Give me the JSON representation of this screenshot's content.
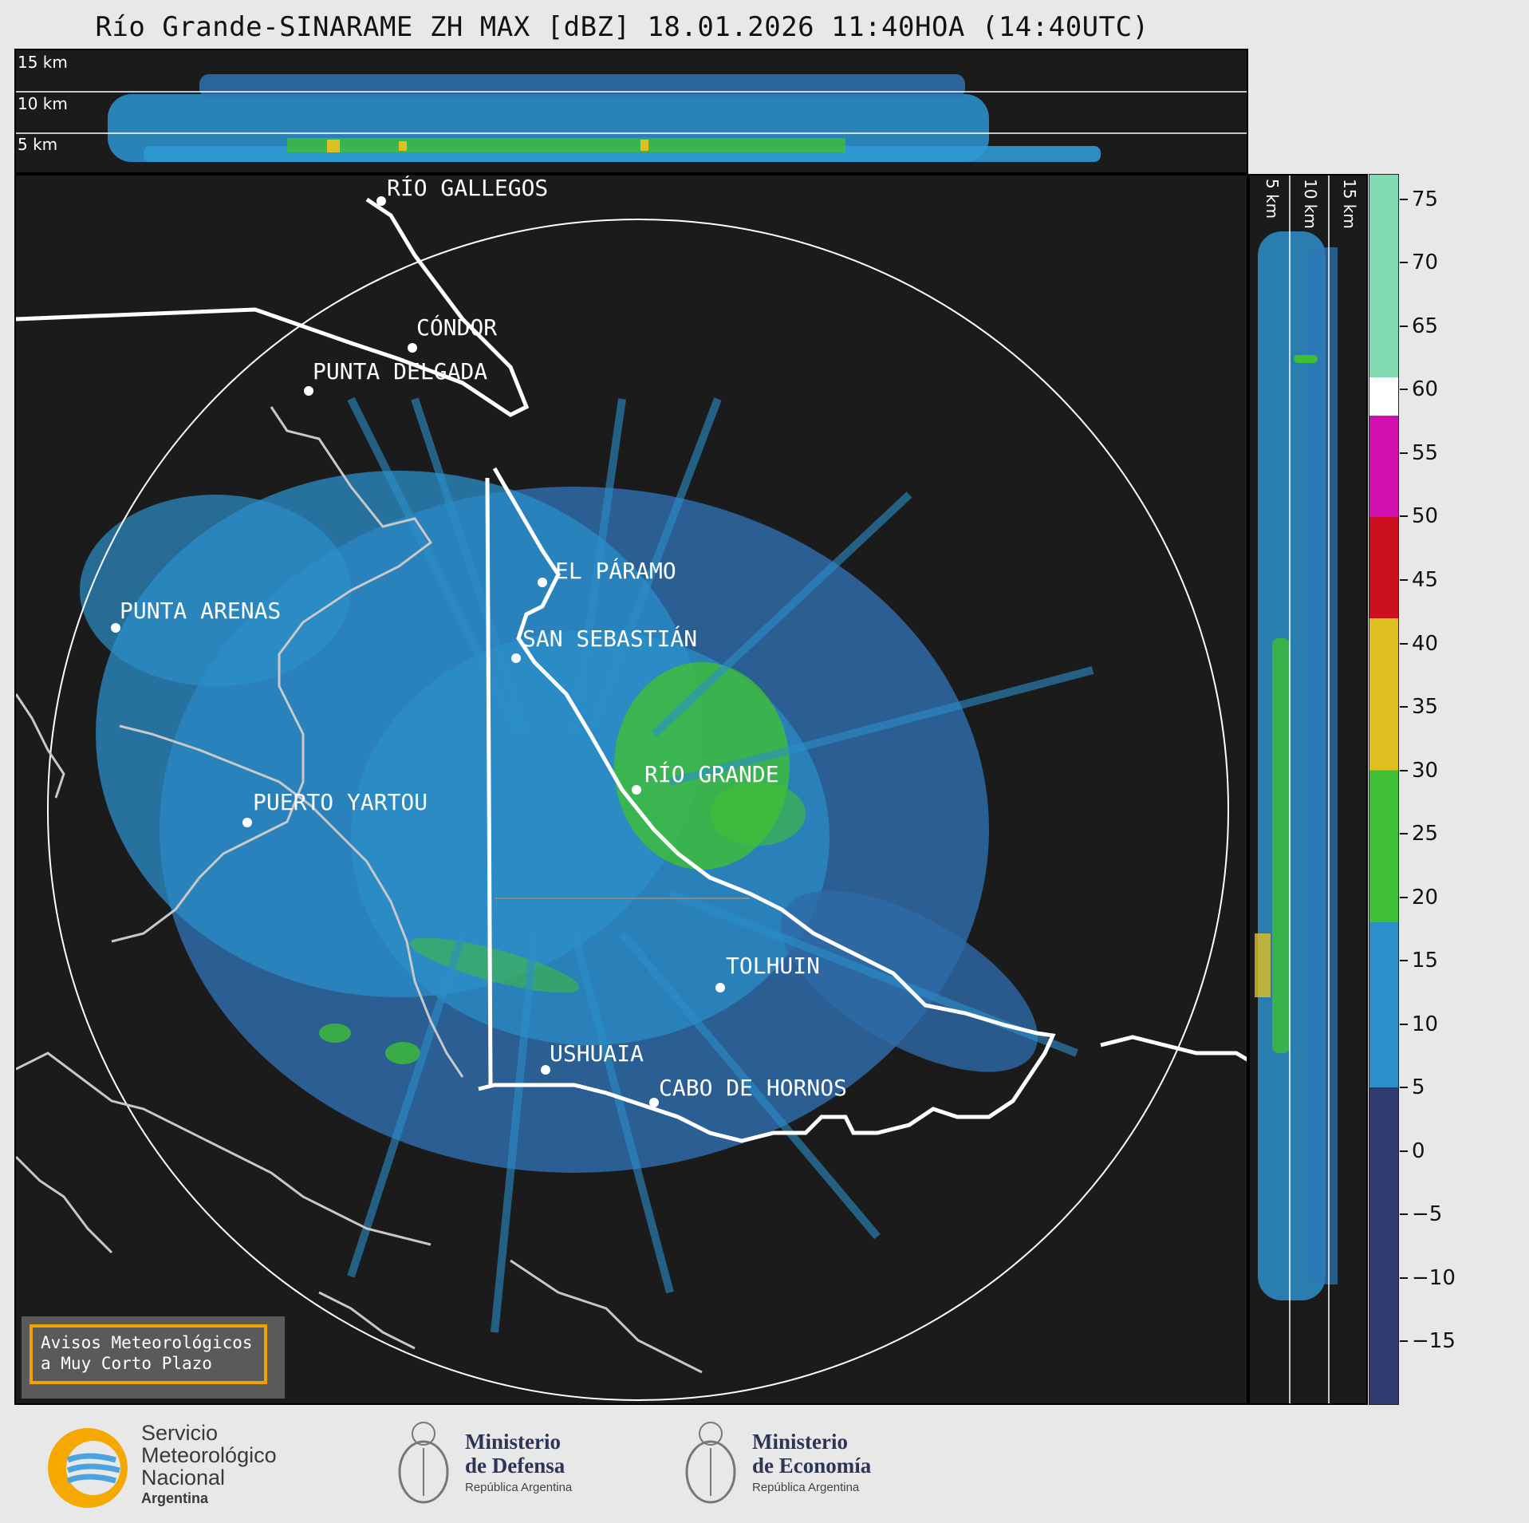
{
  "title": "Río Grande-SINARAME ZH MAX [dBZ] 18.01.2026 11:40HOA (14:40UTC)",
  "top_panel": {
    "labels": [
      "15 km",
      "10 km",
      "5 km"
    ]
  },
  "side_panel": {
    "labels": [
      "5 km",
      "10 km",
      "15 km"
    ]
  },
  "cities": [
    {
      "name": "RÍO GALLEGOS"
    },
    {
      "name": "CÓNDOR"
    },
    {
      "name": "PUNTA DELGADA"
    },
    {
      "name": "EL PÁRAMO"
    },
    {
      "name": "PUNTA ARENAS"
    },
    {
      "name": "SAN SEBASTIÁN"
    },
    {
      "name": "RÍO GRANDE"
    },
    {
      "name": "PUERTO YARTOU"
    },
    {
      "name": "TOLHUIN"
    },
    {
      "name": "USHUAIA"
    },
    {
      "name": "CABO DE HORNOS"
    }
  ],
  "colorbar": {
    "unit": "dBZ",
    "min": -20,
    "max": 77,
    "ticks": [
      "75",
      "70",
      "65",
      "60",
      "55",
      "50",
      "45",
      "40",
      "35",
      "30",
      "25",
      "20",
      "15",
      "10",
      "5",
      "0",
      "−5",
      "−10",
      "−15"
    ],
    "tick_values": [
      75,
      70,
      65,
      60,
      55,
      50,
      45,
      40,
      35,
      30,
      25,
      20,
      15,
      10,
      5,
      0,
      -5,
      -10,
      -15
    ],
    "stops": [
      {
        "from": -20,
        "to": 5,
        "color": "#2f3b6e"
      },
      {
        "from": 5,
        "to": 18,
        "color": "#2b8fc9"
      },
      {
        "from": 18,
        "to": 30,
        "color": "#3fbf33"
      },
      {
        "from": 30,
        "to": 42,
        "color": "#e0c020"
      },
      {
        "from": 42,
        "to": 50,
        "color": "#cc1020"
      },
      {
        "from": 50,
        "to": 58,
        "color": "#d010b0"
      },
      {
        "from": 58,
        "to": 61,
        "color": "#ffffff"
      },
      {
        "from": 61,
        "to": 77,
        "color": "#80dcb0"
      }
    ]
  },
  "warning_box": {
    "line1": "Avisos Meteorológicos",
    "line2": "a Muy Corto Plazo"
  },
  "logos": {
    "smn": {
      "line1": "Servicio",
      "line2": "Meteorológico",
      "line3": "Nacional",
      "line4": "Argentina"
    },
    "defensa": {
      "line1": "Ministerio",
      "line2": "de Defensa",
      "line3": "República Argentina"
    },
    "economia": {
      "line1": "Ministerio",
      "line2": "de Economía",
      "line3": "República Argentina"
    }
  },
  "colors": {
    "background": "#1b1b1b",
    "echo_light": "#2b8fc9",
    "echo_dark": "#2e5d9c",
    "echo_green": "#3fbf33",
    "border_white": "#ffffff",
    "coast_gray": "#c8c8c8"
  }
}
